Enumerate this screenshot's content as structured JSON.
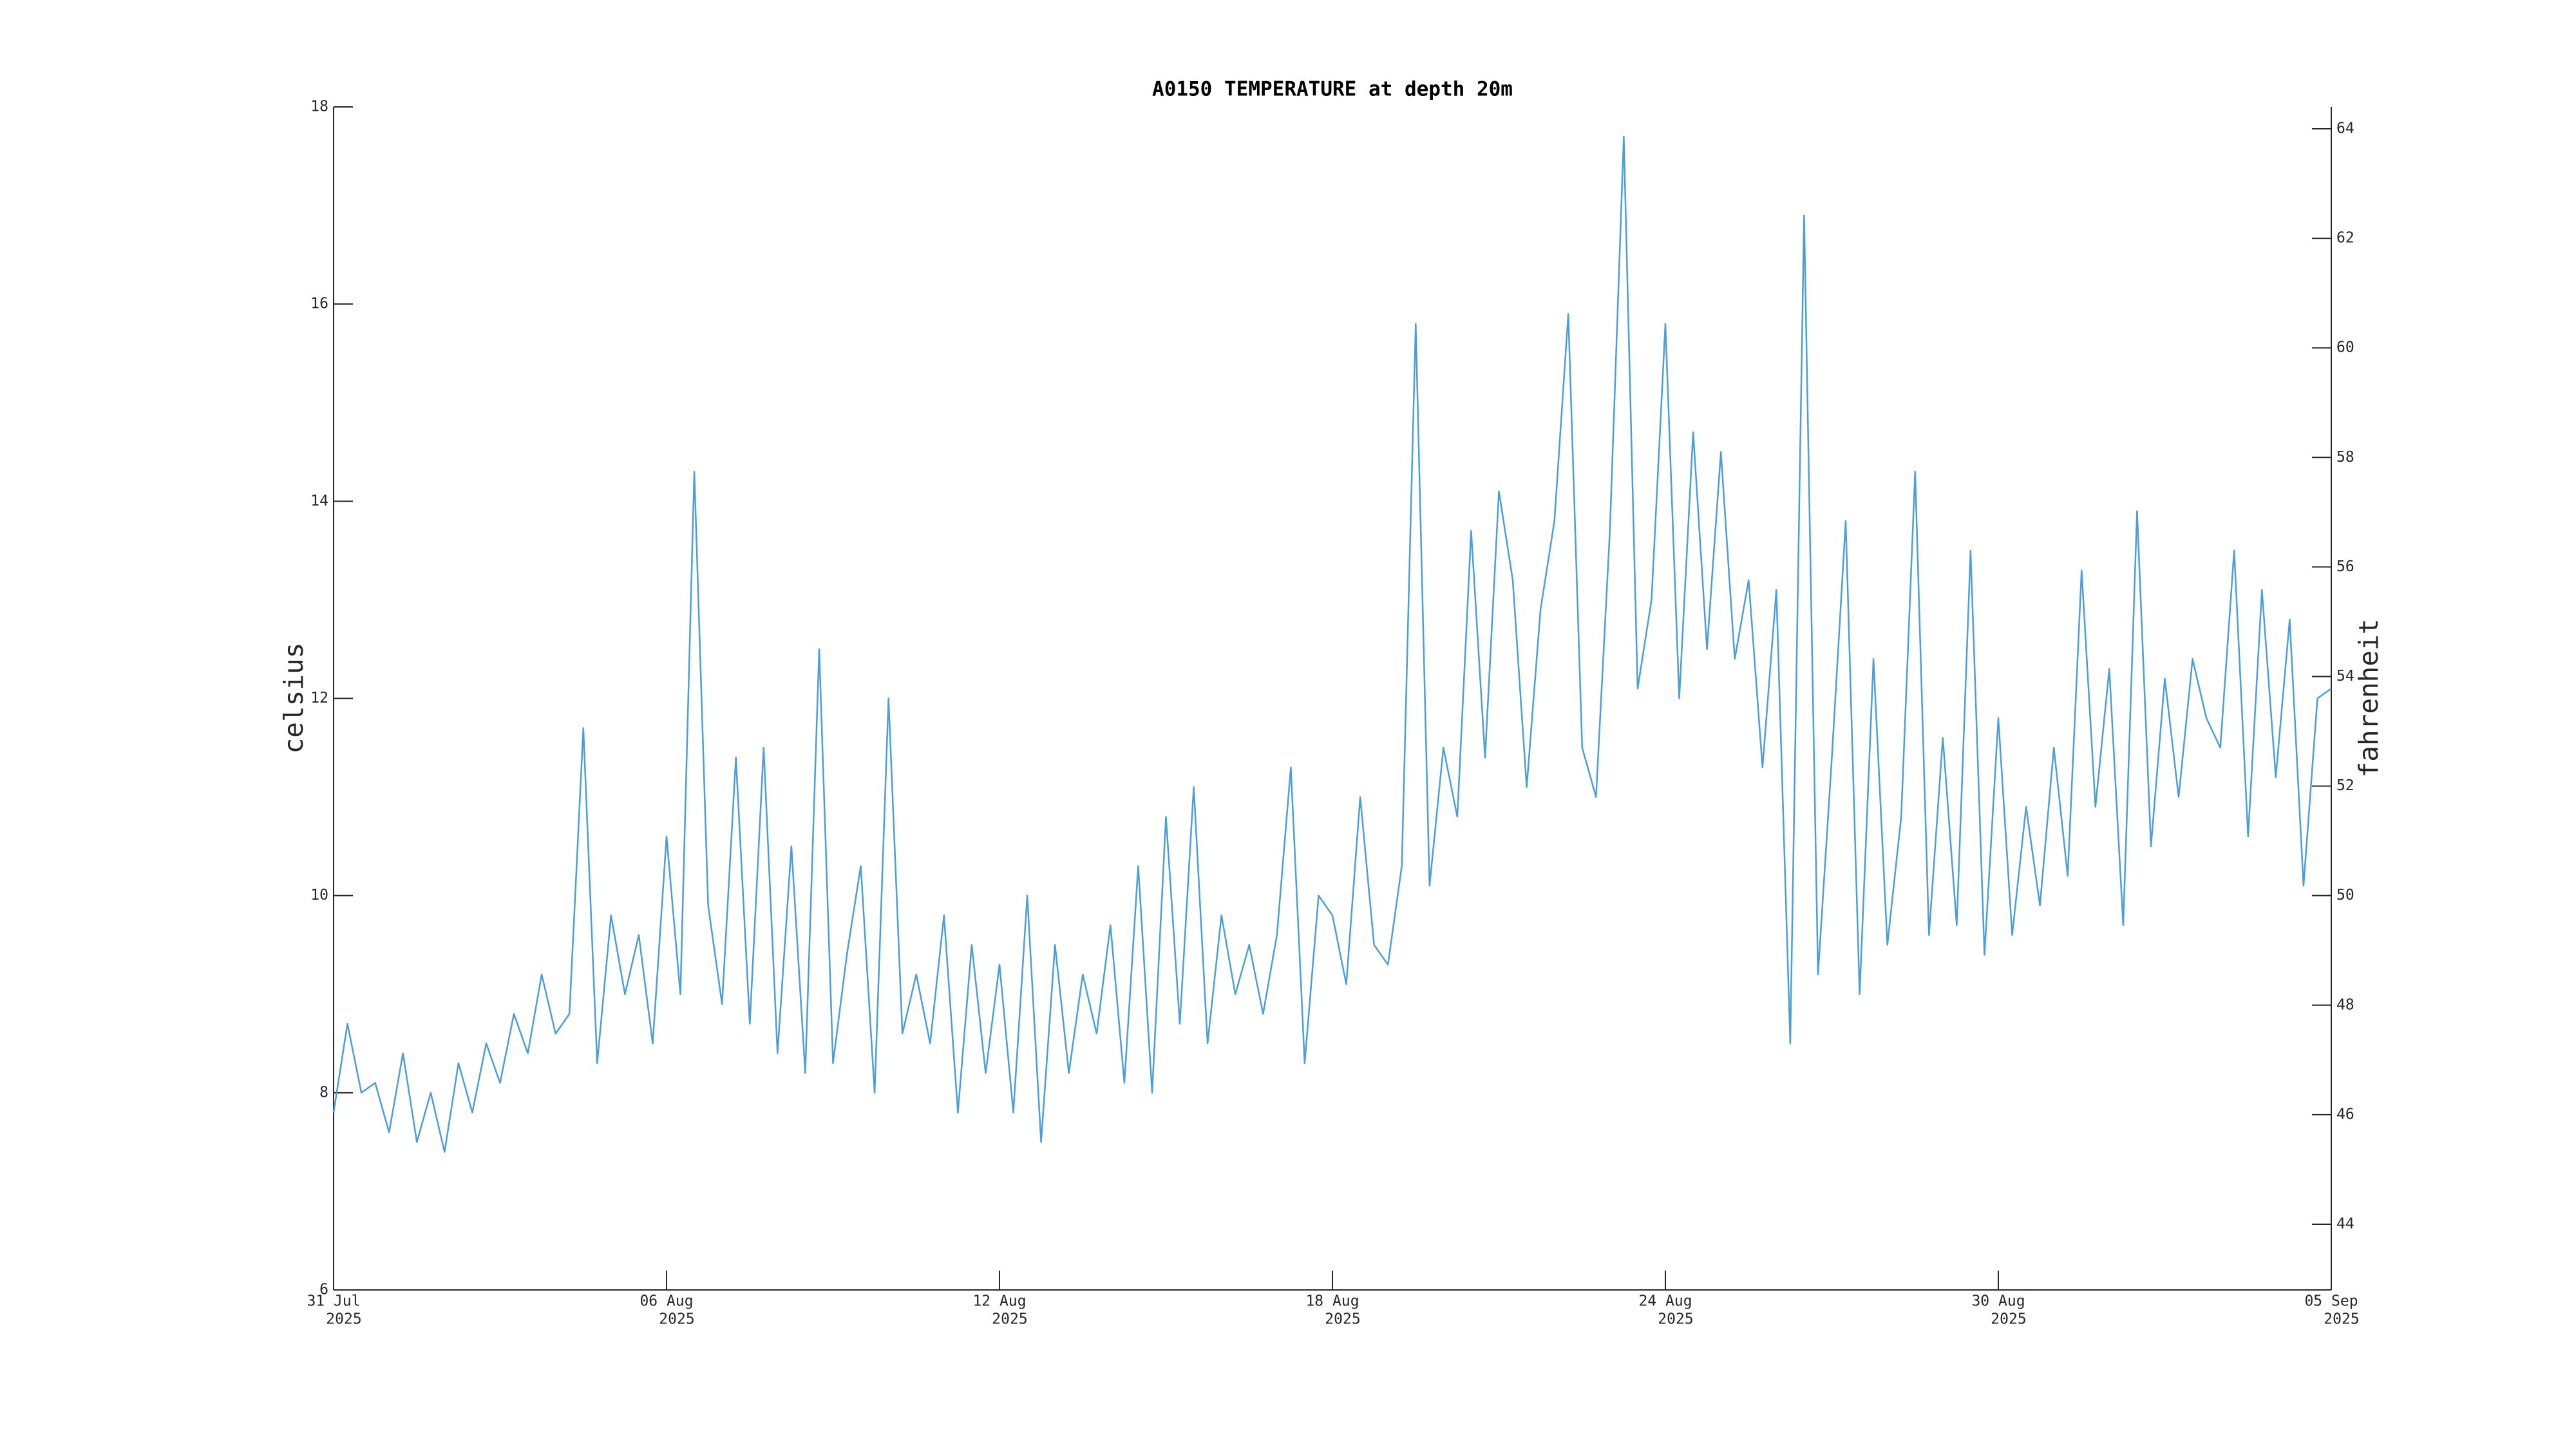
{
  "chart_data": {
    "type": "line",
    "title": "A0150 TEMPERATURE at depth 20m",
    "ylabel": "celsius",
    "y2label": "fahrenheit",
    "color": "#4a9fd8",
    "xlim": [
      "2025-07-31",
      "2025-09-05"
    ],
    "xticks": [
      {
        "value": "2025-07-31",
        "label": [
          "31 Jul",
          "2025"
        ]
      },
      {
        "value": "2025-08-06",
        "label": [
          "06 Aug",
          "2025"
        ]
      },
      {
        "value": "2025-08-12",
        "label": [
          "12 Aug",
          "2025"
        ]
      },
      {
        "value": "2025-08-18",
        "label": [
          "18 Aug",
          "2025"
        ]
      },
      {
        "value": "2025-08-24",
        "label": [
          "24 Aug",
          "2025"
        ]
      },
      {
        "value": "2025-08-30",
        "label": [
          "30 Aug",
          "2025"
        ]
      },
      {
        "value": "2025-09-05",
        "label": [
          "05 Sep",
          "2025"
        ]
      }
    ],
    "ylim": [
      6,
      18
    ],
    "yticks": [
      6,
      8,
      10,
      12,
      14,
      16,
      18
    ],
    "y2lim": [
      42.8,
      64.4
    ],
    "y2ticks": [
      44,
      46,
      48,
      50,
      52,
      54,
      56,
      58,
      60,
      62,
      64
    ],
    "values": [
      7.8,
      8.7,
      8.0,
      8.1,
      7.6,
      8.4,
      7.5,
      8.0,
      7.4,
      8.3,
      7.8,
      8.5,
      8.1,
      8.8,
      8.4,
      9.2,
      8.6,
      8.8,
      11.7,
      8.3,
      9.8,
      9.0,
      9.6,
      8.5,
      10.6,
      9.0,
      14.3,
      9.9,
      8.9,
      11.4,
      8.7,
      11.5,
      8.4,
      10.5,
      8.2,
      12.5,
      8.3,
      9.4,
      10.3,
      8.0,
      12.0,
      8.6,
      9.2,
      8.5,
      9.8,
      7.8,
      9.5,
      8.2,
      9.3,
      7.8,
      10.0,
      7.5,
      9.5,
      8.2,
      9.2,
      8.6,
      9.7,
      8.1,
      10.3,
      8.0,
      10.8,
      8.7,
      11.1,
      8.5,
      9.8,
      9.0,
      9.5,
      8.8,
      9.6,
      11.3,
      8.3,
      10.0,
      9.8,
      9.1,
      11.0,
      9.5,
      9.3,
      10.3,
      15.8,
      10.1,
      11.5,
      10.8,
      13.7,
      11.4,
      14.1,
      13.2,
      11.1,
      12.9,
      13.8,
      15.9,
      11.5,
      11.0,
      13.7,
      17.7,
      12.1,
      13.0,
      15.8,
      12.0,
      14.7,
      12.5,
      14.5,
      12.4,
      13.2,
      11.3,
      13.1,
      8.5,
      16.9,
      9.2,
      11.4,
      13.8,
      9.0,
      12.4,
      9.5,
      10.8,
      14.3,
      9.6,
      11.6,
      9.7,
      13.5,
      9.4,
      11.8,
      9.6,
      10.9,
      9.9,
      11.5,
      10.2,
      13.3,
      10.9,
      12.3,
      9.7,
      13.9,
      10.5,
      12.2,
      11.0,
      12.4,
      11.8,
      11.5,
      13.5,
      10.6,
      13.1,
      11.2,
      12.8,
      10.1,
      12.0,
      12.1
    ]
  }
}
